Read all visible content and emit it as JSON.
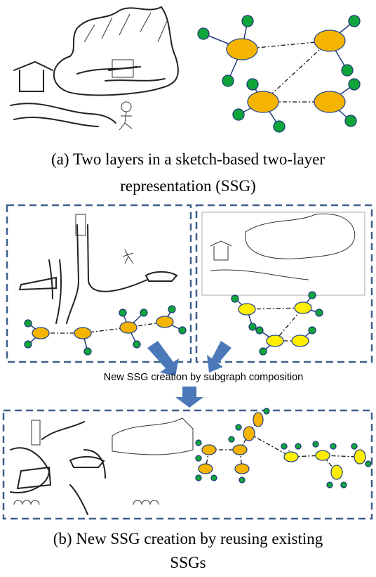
{
  "caption_a": [
    "(a) Two layers in a sketch-based two-layer",
    "representation (SSG)"
  ],
  "step_label": "New SSG creation by subgraph composition",
  "caption_b": [
    "(b) New SSG creation by reusing existing",
    "SSGs"
  ]
}
